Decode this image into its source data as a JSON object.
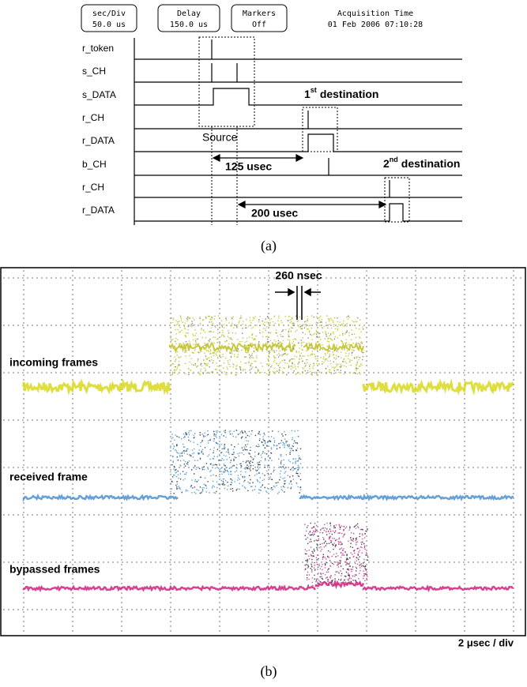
{
  "panel_a": {
    "header": {
      "time_div_label": "sec/Div",
      "time_div_value": "50.0 us",
      "delay_label": "Delay",
      "delay_value": "150.0 us",
      "markers_label": "Markers",
      "markers_value": "Off",
      "acquisition_label": "Acquisition Time",
      "acquisition_value": "01 Feb 2006 07:10:28"
    },
    "signals": [
      "r_token",
      "s_CH",
      "s_DATA",
      "r_CH",
      "r_DATA",
      "b_CH",
      "r_CH",
      "r_DATA"
    ],
    "annotations": {
      "first_destination": {
        "number": "1",
        "suffix": "st",
        "text": "destination"
      },
      "second_destination": {
        "number": "2",
        "suffix": "nd",
        "text": "destination"
      },
      "source": "Source",
      "delay_1": "125 usec",
      "delay_2": "200 usec"
    },
    "caption": "(a)"
  },
  "panel_b": {
    "traces": [
      "incoming frames",
      "received frame",
      "bypassed frames"
    ],
    "gap_label": "260 nsec",
    "scale_label": "2 μsec / div",
    "caption": "(b)"
  }
}
